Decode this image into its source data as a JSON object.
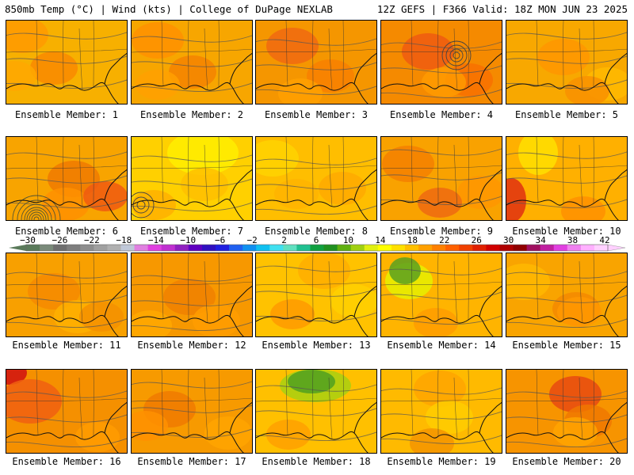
{
  "header": {
    "left": "850mb Temp (°C) | Wind (kts) | College of DuPage NEXLAB",
    "right": "12Z GEFS | F366 Valid: 18Z MON JUN 23 2025"
  },
  "colorbar": {
    "labels": [
      "−30",
      "−26",
      "−22",
      "−18",
      "−14",
      "−10",
      "−6",
      "−2",
      "2",
      "6",
      "10",
      "14",
      "18",
      "22",
      "26",
      "30",
      "34",
      "38",
      "42"
    ],
    "colors": [
      "#5a7a5a",
      "#7a8a7a",
      "#6e6e6e",
      "#7e7e7e",
      "#8e8e8e",
      "#a0a0a0",
      "#b0b0b0",
      "#c0c8d8",
      "#e080e0",
      "#e040e0",
      "#c030d0",
      "#9020c0",
      "#6000c0",
      "#3010c0",
      "#2020e0",
      "#2060f0",
      "#1090f0",
      "#10c0f0",
      "#40e0f0",
      "#60e0c0",
      "#20c090",
      "#10a040",
      "#209020",
      "#60b010",
      "#a0d010",
      "#e0f010",
      "#ffff00",
      "#ffe000",
      "#ffc000",
      "#ffa000",
      "#ff8000",
      "#ff6000",
      "#f04000",
      "#e02000",
      "#d00000",
      "#b00000",
      "#900000",
      "#a01060",
      "#c020a0",
      "#e040e0",
      "#f080f0",
      "#ffb0ff",
      "#ffd0ff"
    ]
  },
  "panels": [
    {
      "label": "Ensemble Member: 1",
      "bg": "#f7b000",
      "blobs": [
        "#ff9a00",
        "#f98a00",
        "#ffa800"
      ]
    },
    {
      "label": "Ensemble Member: 2",
      "bg": "#f7a600",
      "blobs": [
        "#ff9000",
        "#f58200",
        "#ffa000"
      ]
    },
    {
      "label": "Ensemble Member: 3",
      "bg": "#f59600",
      "blobs": [
        "#f06a10",
        "#f88000",
        "#ffa000"
      ]
    },
    {
      "label": "Ensemble Member: 4",
      "bg": "#f58a00",
      "blobs": [
        "#ee5a10",
        "#f87000",
        "#ff9a00"
      ]
    },
    {
      "label": "Ensemble Member: 5",
      "bg": "#f8a800",
      "blobs": [
        "#ff9600",
        "#ffba00",
        "#f99000"
      ]
    },
    {
      "label": "Ensemble Member: 6",
      "bg": "#f8a400",
      "blobs": [
        "#f07a00",
        "#ff9000",
        "#f05a10"
      ]
    },
    {
      "label": "Ensemble Member: 7",
      "bg": "#ffd000",
      "blobs": [
        "#ffee00",
        "#ffc000",
        "#ffb000"
      ]
    },
    {
      "label": "Ensemble Member: 8",
      "bg": "#ffbe00",
      "blobs": [
        "#ffd400",
        "#ffaa00",
        "#ffb400"
      ]
    },
    {
      "label": "Ensemble Member: 9",
      "bg": "#f9a200",
      "blobs": [
        "#f58000",
        "#ff9600",
        "#ee6a10"
      ]
    },
    {
      "label": "Ensemble Member: 10",
      "bg": "#ffb000",
      "blobs": [
        "#ffe000",
        "#e03010",
        "#ff9000"
      ]
    },
    {
      "label": "Ensemble Member: 11",
      "bg": "#f8a000",
      "blobs": [
        "#f68a00",
        "#ffb000",
        "#f59000"
      ]
    },
    {
      "label": "Ensemble Member: 12",
      "bg": "#f79800",
      "blobs": [
        "#f08000",
        "#ff9c00",
        "#ffa800"
      ]
    },
    {
      "label": "Ensemble Member: 13",
      "bg": "#ffc200",
      "blobs": [
        "#ffae00",
        "#ffd000",
        "#ff9a00"
      ]
    },
    {
      "label": "Ensemble Member: 14",
      "bg": "#ffb400",
      "blobs": [
        "#e6f000",
        "#5aa020",
        "#ff9c00"
      ]
    },
    {
      "label": "Ensemble Member: 15",
      "bg": "#f9a400",
      "blobs": [
        "#ffb800",
        "#f58a00",
        "#ff9800"
      ]
    },
    {
      "label": "Ensemble Member: 16",
      "bg": "#f59000",
      "blobs": [
        "#d01010",
        "#f06010",
        "#ff9c00"
      ]
    },
    {
      "label": "Ensemble Member: 17",
      "bg": "#f79a00",
      "blobs": [
        "#f07a00",
        "#ffa400",
        "#ff9000"
      ]
    },
    {
      "label": "Ensemble Member: 18",
      "bg": "#ffc000",
      "blobs": [
        "#a8d010",
        "#50a020",
        "#ffa000"
      ]
    },
    {
      "label": "Ensemble Member: 19",
      "bg": "#ffba00",
      "blobs": [
        "#ffa400",
        "#ffcc00",
        "#f59400"
      ]
    },
    {
      "label": "Ensemble Member: 20",
      "bg": "#f79400",
      "blobs": [
        "#e84a10",
        "#f07800",
        "#ffa400"
      ]
    }
  ]
}
